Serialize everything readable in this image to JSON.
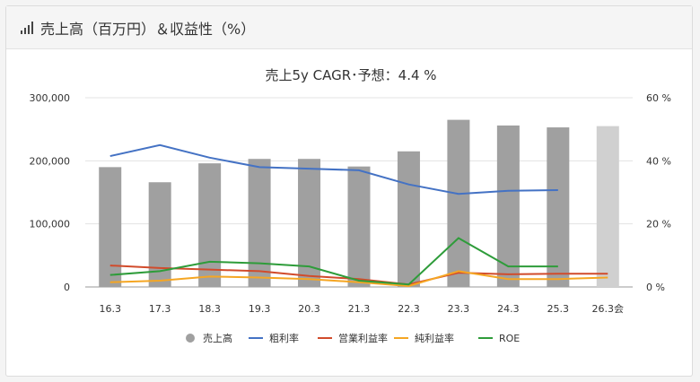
{
  "header": {
    "title": "売上高（百万円）＆収益性（%）",
    "icon": "bar-chart-icon"
  },
  "chart_data": {
    "type": "bar",
    "title": "売上5y CAGR･予想：4.4 %",
    "categories": [
      "16.3",
      "17.3",
      "18.3",
      "19.3",
      "20.3",
      "21.3",
      "22.3",
      "23.3",
      "24.3",
      "25.3",
      "26.3会"
    ],
    "bar_series": {
      "name": "売上高",
      "values": [
        190000,
        166000,
        196000,
        203000,
        203000,
        191000,
        215000,
        265000,
        256000,
        253000,
        255000
      ],
      "color": "#a0a0a0",
      "forecast_color": "#d0d0d0",
      "forecast_index": 10
    },
    "line_series": [
      {
        "name": "粗利率",
        "color": "#4472c4",
        "values": [
          41.5,
          45,
          41,
          38,
          37.5,
          37,
          32.5,
          29.5,
          30.5,
          30.7,
          null
        ]
      },
      {
        "name": "営業利益率",
        "color": "#d14b2b",
        "values": [
          6.8,
          6,
          5.5,
          5,
          3.5,
          2.5,
          0.8,
          4.5,
          4,
          4.2,
          4.2
        ]
      },
      {
        "name": "純利益率",
        "color": "#f5a623",
        "values": [
          1.5,
          2,
          3.3,
          3,
          2.5,
          1.5,
          0.3,
          5,
          2.5,
          2.5,
          3
        ]
      },
      {
        "name": "ROE",
        "color": "#2e9c3a",
        "values": [
          3.8,
          5,
          8,
          7.5,
          6.5,
          2,
          0.8,
          15.5,
          6.5,
          6.5,
          null
        ]
      }
    ],
    "y_left": {
      "min": 0,
      "max": 300000,
      "ticks": [
        "0",
        "100,000",
        "200,000",
        "300,000"
      ]
    },
    "y_right": {
      "min": 0,
      "max": 60,
      "ticks": [
        "0 %",
        "20 %",
        "40 %",
        "60 %"
      ]
    },
    "grid": true,
    "legend_position": "bottom"
  }
}
